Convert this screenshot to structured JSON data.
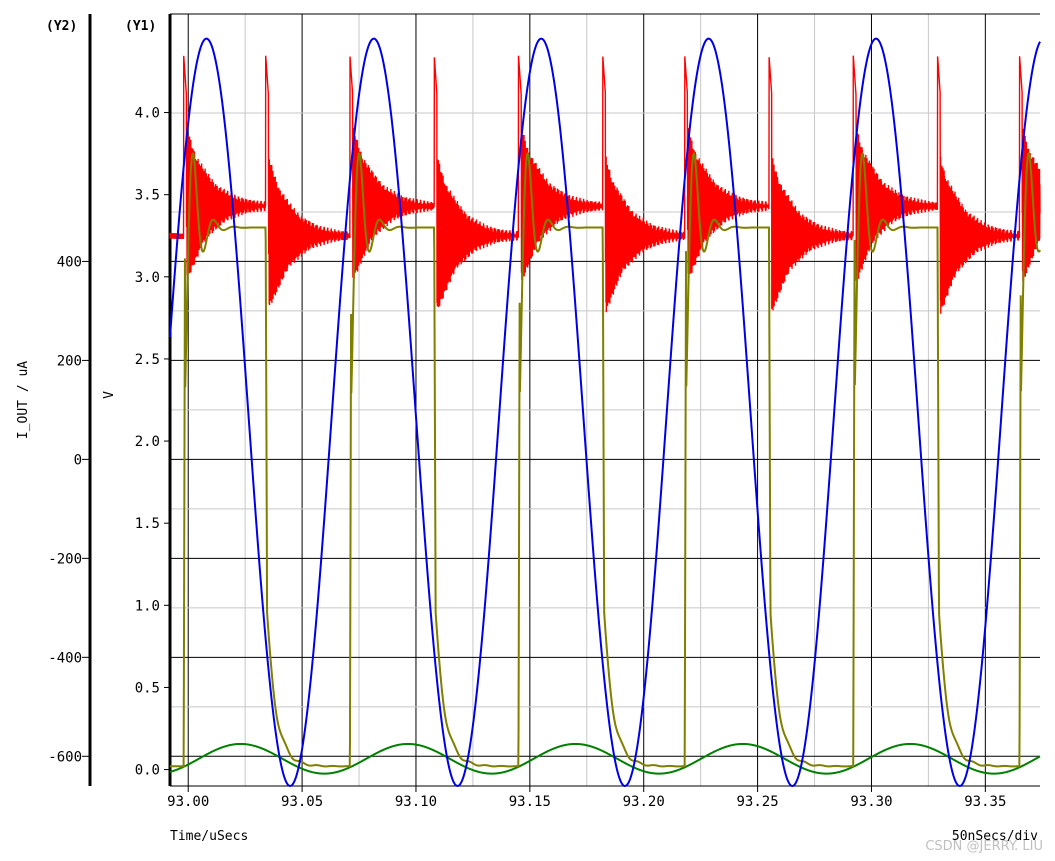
{
  "chart_data": {
    "type": "line",
    "x_unit_label": "Time/uSecs",
    "time_div_label": "50nSecs/div",
    "xlim": [
      92.992,
      93.374
    ],
    "xticks": [
      93.0,
      93.05,
      93.1,
      93.15,
      93.2,
      93.25,
      93.3,
      93.35
    ],
    "xtick_labels": [
      "93.00",
      "93.05",
      "93.10",
      "93.15",
      "93.20",
      "93.25",
      "93.30",
      "93.35"
    ],
    "y1": {
      "header": "(Y1)",
      "label": "V",
      "range": [
        -0.1,
        4.6
      ],
      "ticks": [
        0.0,
        0.5,
        1.0,
        1.5,
        2.0,
        2.5,
        3.0,
        3.5,
        4.0
      ],
      "tick_labels": [
        "0.0",
        "0.5",
        "1.0",
        "1.5",
        "2.0",
        "2.5",
        "3.0",
        "3.5",
        "4.0"
      ]
    },
    "y2": {
      "header": "(Y2)",
      "label": "I_OUT / uA",
      "range": [
        -660,
        900
      ],
      "ticks": [
        -600,
        -400,
        -200,
        0,
        200,
        400
      ],
      "tick_labels": [
        "-600",
        "-400",
        "-200",
        "0",
        "200",
        "400"
      ]
    },
    "series": [
      {
        "name": "sine (blue)",
        "color": "#0000e6",
        "axis": "y1",
        "description": "Sine wave, period 0.0735 us",
        "period": 0.0735,
        "min": -0.1,
        "max": 4.45,
        "peaks_at": [
          93.008,
          93.081,
          93.155,
          93.229,
          93.302
        ],
        "troughs_at": [
          93.045,
          93.118,
          93.192,
          93.265,
          93.339
        ]
      },
      {
        "name": "square output (olive)",
        "color": "#7f7f00",
        "axis": "y1",
        "description": "Square wave with ringing",
        "period": 0.0735,
        "high": 3.3,
        "low": 0.02,
        "rising_edges": [
          92.998,
          93.071,
          93.145,
          93.218,
          93.292,
          93.365
        ],
        "falling_edges": [
          93.034,
          93.108,
          93.182,
          93.255,
          93.329
        ]
      },
      {
        "name": "current spikes (red)",
        "color": "#ff0000",
        "axis": "y1",
        "description": "Ringing current spikes at edges",
        "spike_peak": 4.35,
        "settled_high": 3.43,
        "settled_low": 3.25,
        "spikes_at": [
          92.998,
          93.034,
          93.071,
          93.108,
          93.145,
          93.182,
          93.218,
          93.255,
          93.292,
          93.329,
          93.365
        ]
      },
      {
        "name": "I_OUT (green)",
        "color": "#008000",
        "axis": "y2",
        "description": "Small sine on Y2 axis",
        "period": 0.0735,
        "min": -635,
        "max": -575
      }
    ]
  },
  "watermark": "CSDN @JERRY. LIU"
}
